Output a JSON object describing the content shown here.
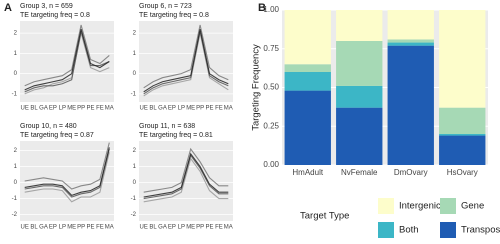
{
  "panel_labels": [
    "A",
    "B"
  ],
  "chart_data": [
    {
      "type": "line",
      "title": "Group 3, n = 659",
      "subtitle": "TE targeting freq =  0.8",
      "categories": [
        "UE",
        "BL",
        "GA",
        "EP",
        "LP",
        "ME",
        "PP",
        "PE",
        "FE",
        "MA"
      ],
      "series": [
        {
          "color": "#9a9a9a",
          "values": [
            -1.0,
            -0.8,
            -0.7,
            -0.5,
            -0.4,
            -0.2,
            2.0,
            0.3,
            0.1,
            0.3
          ]
        },
        {
          "color": "#777777",
          "values": [
            -0.6,
            -0.4,
            -0.3,
            -0.2,
            -0.1,
            0.2,
            2.4,
            0.7,
            0.5,
            0.9
          ]
        },
        {
          "color": "#555555",
          "values": [
            -0.9,
            -0.7,
            -0.6,
            -0.6,
            -0.5,
            -0.3,
            2.1,
            0.4,
            0.4,
            0.6
          ]
        },
        {
          "color": "#222222",
          "values": [
            -0.8,
            -0.6,
            -0.5,
            -0.4,
            -0.3,
            0.0,
            2.2,
            0.5,
            0.3,
            0.6
          ]
        }
      ],
      "ylim": [
        -1.4,
        2.6
      ],
      "yticks": [
        -1,
        0,
        1,
        2
      ],
      "grid": true
    },
    {
      "type": "line",
      "title": "Group 6, n = 723",
      "subtitle": "TE targeting freq =  0.8",
      "categories": [
        "UE",
        "BL",
        "GA",
        "EP",
        "LP",
        "ME",
        "PP",
        "PE",
        "FE",
        "MA"
      ],
      "series": [
        {
          "color": "#9a9a9a",
          "values": [
            -1.1,
            -0.8,
            -0.6,
            -0.5,
            -0.4,
            -0.3,
            2.0,
            -0.2,
            -0.5,
            -0.8
          ]
        },
        {
          "color": "#777777",
          "values": [
            -0.7,
            -0.4,
            -0.2,
            -0.1,
            0.0,
            0.2,
            2.4,
            0.3,
            -0.1,
            -0.3
          ]
        },
        {
          "color": "#555555",
          "values": [
            -1.0,
            -0.7,
            -0.5,
            -0.4,
            -0.3,
            -0.2,
            2.1,
            -0.1,
            -0.4,
            -0.6
          ]
        },
        {
          "color": "#222222",
          "values": [
            -0.9,
            -0.6,
            -0.4,
            -0.3,
            -0.2,
            -0.1,
            2.2,
            0.0,
            -0.3,
            -0.5
          ]
        }
      ],
      "ylim": [
        -1.4,
        2.6
      ],
      "yticks": [
        -1,
        0,
        1,
        2
      ],
      "grid": true
    },
    {
      "type": "line",
      "title": "Group 10, n = 480",
      "subtitle": "TE targeting freq =  0.87",
      "categories": [
        "UE",
        "BL",
        "GA",
        "EP",
        "LP",
        "ME",
        "PP",
        "PE",
        "FE",
        "MA"
      ],
      "series": [
        {
          "color": "#9a9a9a",
          "values": [
            -0.6,
            -0.5,
            -0.4,
            -0.4,
            -0.5,
            -1.2,
            -0.9,
            -0.9,
            -0.6,
            1.9
          ]
        },
        {
          "color": "#777777",
          "values": [
            0.1,
            0.2,
            0.3,
            0.2,
            0.1,
            -0.4,
            -0.2,
            -0.1,
            0.2,
            2.5
          ]
        },
        {
          "color": "#555555",
          "values": [
            -0.4,
            -0.3,
            -0.2,
            -0.2,
            -0.3,
            -0.9,
            -0.7,
            -0.6,
            -0.3,
            2.1
          ]
        },
        {
          "color": "#222222",
          "values": [
            -0.3,
            -0.2,
            -0.1,
            -0.1,
            -0.2,
            -0.8,
            -0.6,
            -0.5,
            -0.2,
            2.2
          ]
        }
      ],
      "ylim": [
        -2.4,
        2.6
      ],
      "yticks": [
        -2,
        -1,
        0,
        1,
        2
      ],
      "grid": true
    },
    {
      "type": "line",
      "title": "Group 11, n = 638",
      "subtitle": "TE targeting freq =  0.81",
      "categories": [
        "UE",
        "BL",
        "GA",
        "EP",
        "LP",
        "ME",
        "PP",
        "PE",
        "FE",
        "MA"
      ],
      "series": [
        {
          "color": "#9a9a9a",
          "values": [
            -1.2,
            -1.1,
            -1.0,
            -0.9,
            -0.6,
            1.5,
            0.7,
            -0.5,
            -1.0,
            -1.0
          ]
        },
        {
          "color": "#777777",
          "values": [
            -0.6,
            -0.5,
            -0.4,
            -0.3,
            0.0,
            2.1,
            1.3,
            0.3,
            -0.2,
            -0.2
          ]
        },
        {
          "color": "#555555",
          "values": [
            -1.0,
            -0.9,
            -0.8,
            -0.7,
            -0.4,
            1.7,
            0.9,
            -0.2,
            -0.7,
            -0.7
          ]
        },
        {
          "color": "#222222",
          "values": [
            -0.9,
            -0.8,
            -0.7,
            -0.6,
            -0.3,
            1.8,
            1.0,
            -0.1,
            -0.6,
            -0.6
          ]
        }
      ],
      "ylim": [
        -2.4,
        2.6
      ],
      "yticks": [
        -2,
        -1,
        0,
        1,
        2
      ],
      "grid": true
    },
    {
      "type": "bar",
      "stacked": true,
      "ylabel": "Targeting Frequency",
      "legend_title": "Target Type",
      "categories": [
        "HmAdult",
        "NvFemale",
        "DmOvary",
        "HsOvary"
      ],
      "series": [
        {
          "name": "Transposon",
          "color": "#1f5cb3",
          "values": [
            0.48,
            0.37,
            0.77,
            0.19
          ]
        },
        {
          "name": "Both",
          "color": "#3cb6c6",
          "values": [
            0.12,
            0.14,
            0.02,
            0.01
          ]
        },
        {
          "name": "Gene",
          "color": "#a6d9b5",
          "values": [
            0.05,
            0.29,
            0.02,
            0.17
          ]
        },
        {
          "name": "Intergenic",
          "color": "#fdfdcb",
          "values": [
            0.35,
            0.2,
            0.19,
            0.63
          ]
        }
      ],
      "ylim": [
        0,
        1
      ],
      "yticks": [
        {
          "value": 0,
          "label": "0.00"
        },
        {
          "value": 0.25,
          "label": "0.25"
        },
        {
          "value": 0.5,
          "label": "0.50"
        },
        {
          "value": 0.75,
          "label": "0.75"
        },
        {
          "value": 1,
          "label": "1.00"
        }
      ],
      "grid": true
    }
  ]
}
